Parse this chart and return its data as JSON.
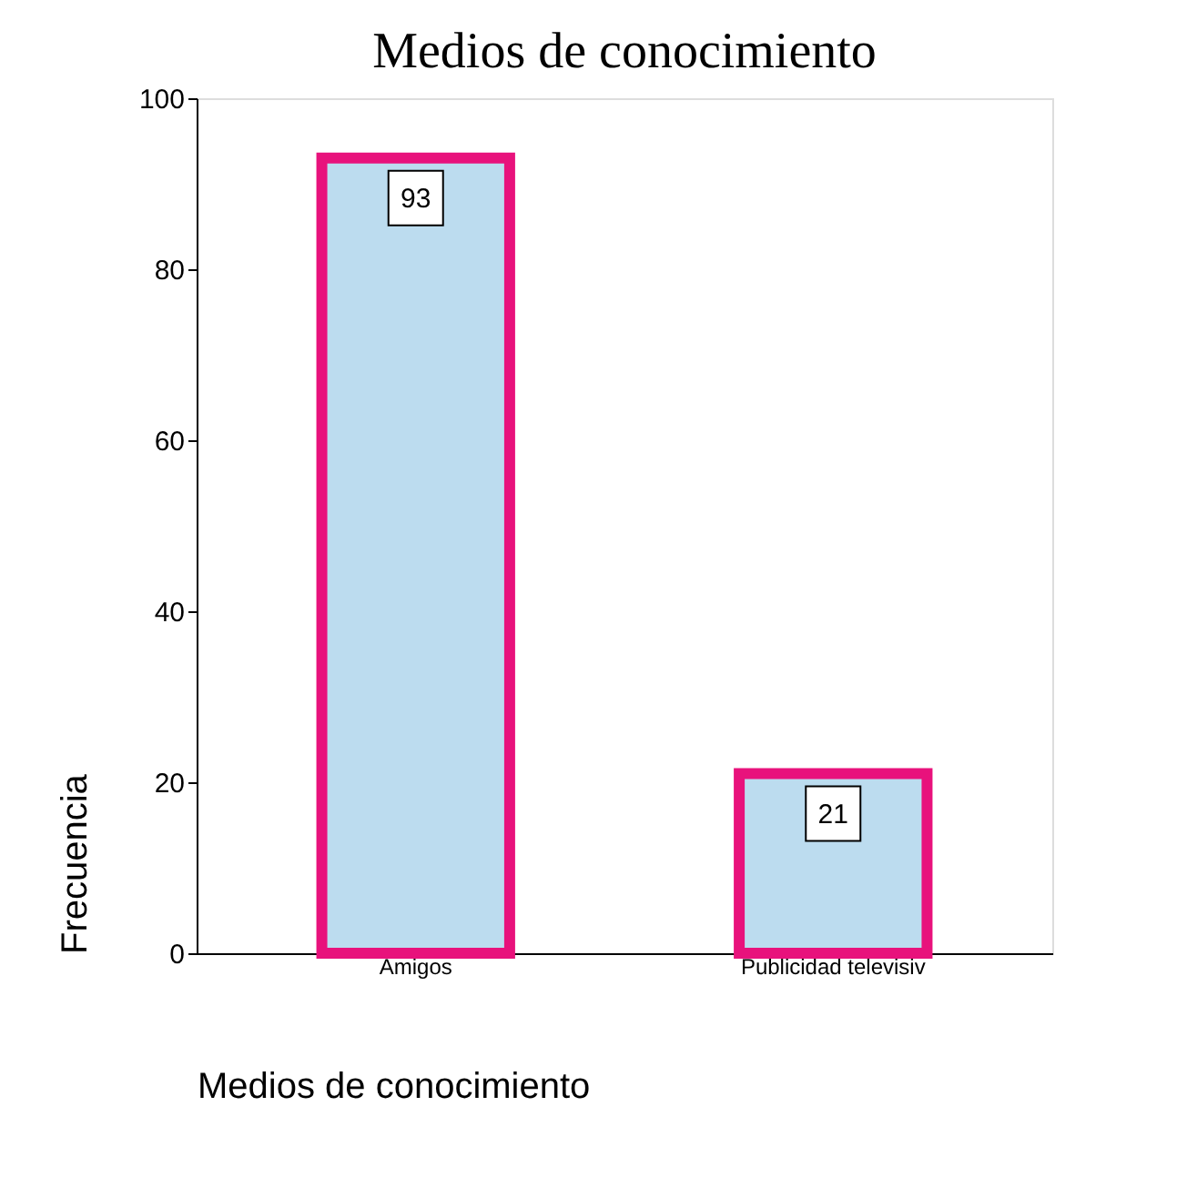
{
  "chart_data": {
    "type": "bar",
    "title": "Medios de conocimiento",
    "xlabel": "Medios de conocimiento",
    "ylabel": "Frecuencia",
    "categories": [
      "Amigos",
      "Publicidad televisiv"
    ],
    "values": [
      93,
      21
    ],
    "color": "#bcdcef",
    "data_labels": true,
    "ylim": [
      0,
      100
    ],
    "yticks": [
      0,
      20,
      40,
      60,
      80,
      100
    ],
    "grid": false
  }
}
